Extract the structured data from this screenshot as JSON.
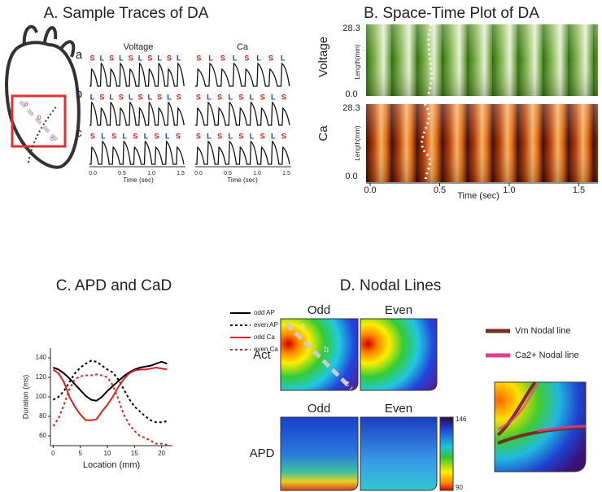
{
  "panel_a": {
    "title": "A. Sample Traces of DA",
    "columns": [
      "Voltage",
      "Ca"
    ],
    "rows": [
      {
        "label": "a",
        "voltage": [
          "S",
          "L",
          "S",
          "L",
          "S",
          "L",
          "S",
          "L",
          "S",
          "L"
        ],
        "ca": [
          "S",
          "L",
          "S",
          "L",
          "S",
          "L",
          "S",
          "L"
        ]
      },
      {
        "label": "b",
        "voltage": [
          "L",
          "S",
          "L",
          "S",
          "L",
          "S",
          "L",
          "S",
          "L",
          "S"
        ],
        "ca": [
          "S",
          "L",
          "S",
          "L",
          "S",
          "L",
          "S",
          "L",
          "S"
        ]
      },
      {
        "label": "c",
        "voltage": [
          "S",
          "L",
          "S",
          "L",
          "S",
          "L",
          "S",
          "L",
          "S"
        ],
        "ca": [
          "S",
          "L",
          "S",
          "L",
          "S",
          "L",
          "S",
          "L",
          "S"
        ]
      }
    ],
    "heart_labels": [
      "a",
      "b",
      "c"
    ],
    "time_ticks": [
      "0.0",
      "0.5",
      "1.0",
      "1.5"
    ],
    "time_label": "Time (sec)"
  },
  "panel_b": {
    "title": "B. Space-Time Plot of DA",
    "maps": [
      "Voltage",
      "Ca"
    ],
    "y_ticks": [
      "28.3",
      "0.0"
    ],
    "y_label": "Length(mm)",
    "x_ticks": [
      "0.0",
      "0.5",
      "1.0",
      "1.5"
    ],
    "x_label": "Time (sec)"
  },
  "chart_data": {
    "type": "line",
    "title": "C. APD and CaD",
    "x_label": "Location (mm)",
    "y_label": "Duration (ms)",
    "x": [
      0,
      1,
      2,
      3,
      4,
      5,
      6,
      7,
      8,
      9,
      10,
      11,
      12,
      13,
      14,
      15,
      16,
      17,
      18,
      19,
      20,
      21
    ],
    "series": [
      {
        "name": "odd AP",
        "color": "#000000",
        "line_style": "solid",
        "values": [
          130,
          128,
          124,
          119,
          113,
          107,
          101,
          97,
          96,
          100,
          106,
          111,
          116,
          121,
          125,
          128,
          130,
          131,
          132,
          134,
          136,
          134
        ]
      },
      {
        "name": "even AP",
        "color": "#000000",
        "line_style": "dotted",
        "values": [
          97,
          100,
          106,
          115,
          124,
          130,
          134,
          137,
          136,
          132,
          128,
          125,
          118,
          108,
          98,
          90,
          85,
          80,
          76,
          74,
          74,
          75
        ]
      },
      {
        "name": "odd Ca",
        "color": "#e02020",
        "line_style": "solid",
        "values": [
          128,
          124,
          115,
          100,
          90,
          82,
          76,
          76,
          77,
          85,
          92,
          100,
          110,
          118,
          124,
          127,
          128,
          128,
          129,
          130,
          129,
          128
        ]
      },
      {
        "name": "even Ca",
        "color": "#e02020",
        "line_style": "dotted",
        "values": [
          70,
          78,
          92,
          108,
          118,
          121,
          122,
          122,
          123,
          122,
          120,
          112,
          98,
          82,
          72,
          65,
          60,
          58,
          55,
          52,
          52,
          51
        ]
      }
    ],
    "xlim": [
      -0.5,
      22
    ],
    "ylim": [
      50,
      150
    ],
    "xticks": [
      0,
      5,
      10,
      15,
      20
    ],
    "yticks": [
      60,
      80,
      100,
      120,
      140
    ]
  },
  "panel_d": {
    "title": "D. Nodal Lines",
    "columns": [
      "Odd",
      "Even"
    ],
    "rows": [
      "Act",
      "APD"
    ],
    "map_labels": [
      "a",
      "b",
      "c"
    ],
    "colorbar": [
      "146",
      "90"
    ],
    "legend": [
      "Vm Nodal line",
      "Ca2+ Nodal line"
    ]
  }
}
